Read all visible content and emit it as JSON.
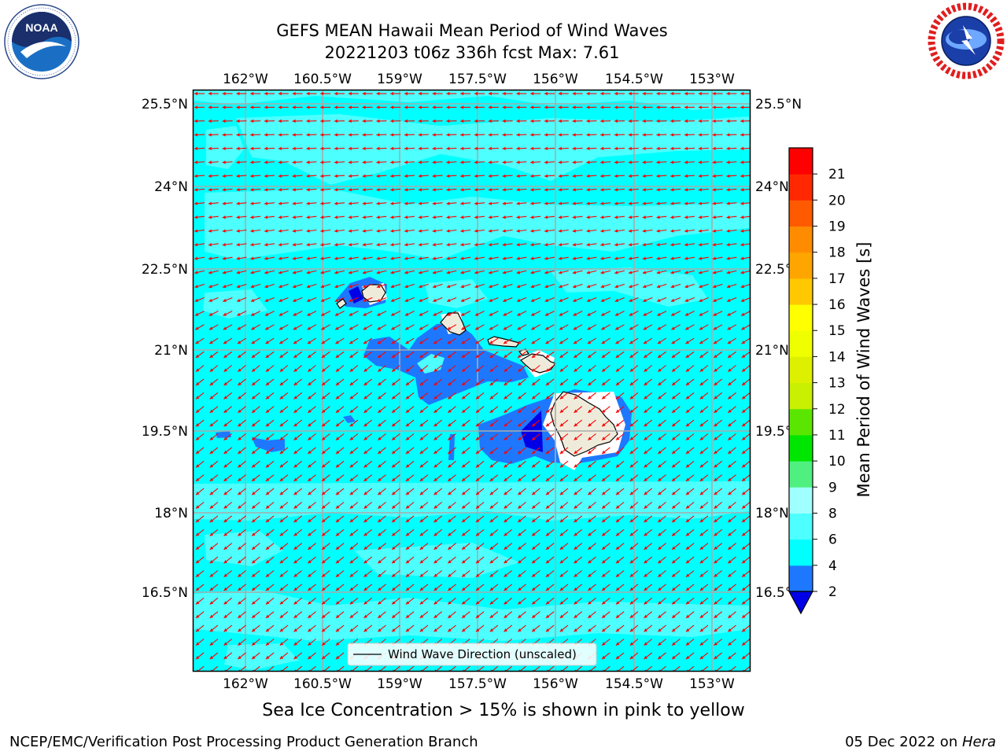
{
  "title": {
    "line1": "GEFS MEAN Hawaii Mean Period of Wind Waves",
    "line2": "20221203 t06z 336h fcst   Max: 7.61"
  },
  "logos": {
    "left": {
      "icon": "noaa-logo",
      "wordmark": "NOAA",
      "ring_text": "NATIONAL OCEANIC AND ATMOSPHERIC ADMINISTRATION · U.S. DEPARTMENT OF COMMERCE"
    },
    "right": {
      "icon": "nws-logo",
      "ring_text": "NATIONAL WEATHER SERVICE"
    }
  },
  "map": {
    "lon_labels": [
      "162°W",
      "160.5°W",
      "159°W",
      "157.5°W",
      "156°W",
      "154.5°W",
      "153°W"
    ],
    "lat_labels": [
      "25.5°N",
      "24°N",
      "22.5°N",
      "21°N",
      "19.5°N",
      "18°N",
      "16.5°N"
    ],
    "legend_label": "Wind Wave Direction (unscaled)",
    "arrow_color": "#ff0000",
    "arrow_direction": "toward west to south-west",
    "ocean_colors": {
      "4-6": "#00ffff",
      "6-8": "#4dffff",
      "2-4": "#1e78ff",
      "<2": "#0000e6"
    },
    "land_color": "#efebdb",
    "islands": [
      "Niihau",
      "Kauai",
      "Oahu",
      "Molokai",
      "Lanai",
      "Maui",
      "Kahoolawe",
      "Hawaii"
    ]
  },
  "colorbar": {
    "label": "Mean Period of Wind Waves [s]",
    "ticks": [
      "2",
      "4",
      "6",
      "8",
      "9",
      "10",
      "11",
      "12",
      "13",
      "14",
      "15",
      "16",
      "17",
      "18",
      "19",
      "20",
      "21"
    ],
    "bins": [
      {
        "from": 2,
        "to": 4,
        "color": "#1e78ff"
      },
      {
        "from": 4,
        "to": 6,
        "color": "#00ffff"
      },
      {
        "from": 6,
        "to": 8,
        "color": "#4dffff"
      },
      {
        "from": 8,
        "to": 9,
        "color": "#a0ffff"
      },
      {
        "from": 9,
        "to": 10,
        "color": "#50f080"
      },
      {
        "from": 10,
        "to": 11,
        "color": "#00e600"
      },
      {
        "from": 11,
        "to": 12,
        "color": "#5ae600"
      },
      {
        "from": 12,
        "to": 13,
        "color": "#c8f000"
      },
      {
        "from": 13,
        "to": 14,
        "color": "#dcf000"
      },
      {
        "from": 14,
        "to": 15,
        "color": "#f0ff00"
      },
      {
        "from": 15,
        "to": 16,
        "color": "#ffff00"
      },
      {
        "from": 16,
        "to": 17,
        "color": "#ffc800"
      },
      {
        "from": 17,
        "to": 18,
        "color": "#ffa500"
      },
      {
        "from": 18,
        "to": 19,
        "color": "#ff8c00"
      },
      {
        "from": 19,
        "to": 20,
        "color": "#ff5a00"
      },
      {
        "from": 20,
        "to": 21,
        "color": "#ff2800"
      },
      {
        "from": 21,
        "to": 22,
        "color": "#ff0000"
      }
    ],
    "under_color": "#0000e6"
  },
  "note": "Sea Ice Concentration > 15% is shown in pink to yellow",
  "footer": {
    "left": "NCEP/EMC/Verification Post Processing Product Generation Branch",
    "date": "05 Dec 2022 on ",
    "host": "Hera"
  }
}
